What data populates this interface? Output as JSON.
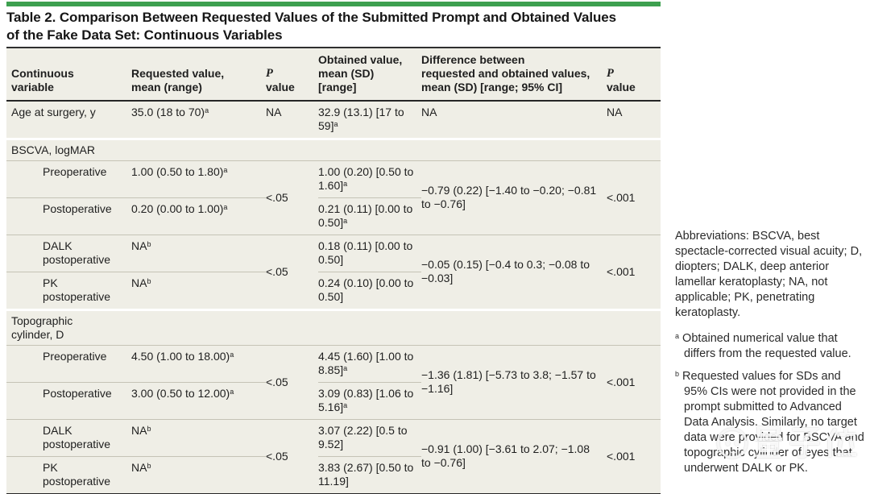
{
  "title": {
    "line1": "Table 2. Comparison Between Requested Values of the Submitted Prompt and Obtained Values",
    "line2": "of the Fake Data Set: Continuous Variables"
  },
  "table": {
    "headers": [
      {
        "text": "Continuous\nvariable"
      },
      {
        "text": "Requested value,\nmean (range)"
      },
      {
        "em": "P",
        "text": "value"
      },
      {
        "text": "Obtained value,\nmean (SD)\n[range]"
      },
      {
        "text": "Difference between\nrequested and obtained values,\nmean (SD) [range; 95% CI]"
      },
      {
        "em": "P",
        "text": "value"
      }
    ],
    "rows": [
      {
        "type": "data",
        "cells": [
          {
            "t": "Age at surgery, y"
          },
          {
            "t": "35.0 (18 to 70)^a"
          },
          {
            "t": "NA"
          },
          {
            "t": "32.9 (13.1) [17 to 59]^a"
          },
          {
            "t": "NA"
          },
          {
            "t": "NA"
          }
        ]
      },
      {
        "type": "gap"
      },
      {
        "type": "section",
        "t": "BSCVA, logMAR"
      },
      {
        "type": "data",
        "cells": [
          {
            "t": "Preoperative",
            "indent": true,
            "hline": true
          },
          {
            "t": "1.00 (0.50 to 1.80)^a",
            "hline": true
          },
          {
            "t": "<.05",
            "rowspan": 2,
            "mid": true
          },
          {
            "t": "1.00 (0.20) [0.50 to 1.60]^a",
            "hline": true
          },
          {
            "t": "−0.79 (0.22) [−1.40 to −0.20; −0.81 to −0.76]",
            "rowspan": 2,
            "mid": true
          },
          {
            "t": "<.001",
            "rowspan": 2,
            "mid": true
          }
        ]
      },
      {
        "type": "data",
        "cells": [
          {
            "t": "Postoperative",
            "indent": true
          },
          {
            "t": "0.20 (0.00 to 1.00)^a"
          },
          {
            "t": "0.21 (0.11) [0.00 to 0.50]^a"
          }
        ]
      },
      {
        "type": "data",
        "topline": true,
        "cells": [
          {
            "t": "DALK postoperative",
            "indent": true,
            "hline": true
          },
          {
            "t": "NA^b",
            "hline": true
          },
          {
            "t": "<.05",
            "rowspan": 2,
            "mid": true
          },
          {
            "t": "0.18 (0.11) [0.00 to 0.50]",
            "hline": true
          },
          {
            "t": "−0.05 (0.15) [−0.4 to 0.3; −0.08 to −0.03]",
            "rowspan": 2,
            "mid": true
          },
          {
            "t": "<.001",
            "rowspan": 2,
            "mid": true
          }
        ]
      },
      {
        "type": "data",
        "cells": [
          {
            "t": "PK postoperative",
            "indent": true
          },
          {
            "t": "NA^b"
          },
          {
            "t": "0.24 (0.10) [0.00 to 0.50]"
          }
        ]
      },
      {
        "type": "gap"
      },
      {
        "type": "section",
        "t": "Topographic cylinder, D"
      },
      {
        "type": "data",
        "cells": [
          {
            "t": "Preoperative",
            "indent": true,
            "hline": true
          },
          {
            "t": "4.50 (1.00 to 18.00)^a",
            "hline": true
          },
          {
            "t": "<.05",
            "rowspan": 2,
            "mid": true
          },
          {
            "t": "4.45 (1.60) [1.00 to 8.85]^a",
            "hline": true
          },
          {
            "t": "−1.36 (1.81) [−5.73 to 3.8; −1.57 to −1.16]",
            "rowspan": 2,
            "mid": true
          },
          {
            "t": "<.001",
            "rowspan": 2,
            "mid": true
          }
        ]
      },
      {
        "type": "data",
        "cells": [
          {
            "t": "Postoperative",
            "indent": true
          },
          {
            "t": "3.00 (0.50 to 12.00)^a"
          },
          {
            "t": "3.09 (0.83) [1.06 to 5.16]^a"
          }
        ]
      },
      {
        "type": "data",
        "topline": true,
        "cells": [
          {
            "t": "DALK postoperative",
            "indent": true,
            "hline": true
          },
          {
            "t": "NA^b",
            "hline": true
          },
          {
            "t": "<.05",
            "rowspan": 2,
            "mid": true
          },
          {
            "t": "3.07 (2.22) [0.5 to 9.52]",
            "hline": true
          },
          {
            "t": "−0.91 (1.00) [−3.61 to 2.07; −1.08 to −0.76]",
            "rowspan": 2,
            "mid": true
          },
          {
            "t": "<.001",
            "rowspan": 2,
            "mid": true
          }
        ]
      },
      {
        "type": "data",
        "cells": [
          {
            "t": "PK postoperative",
            "indent": true
          },
          {
            "t": "NA^b"
          },
          {
            "t": "3.83 (2.67) [0.50 to 11.19]"
          }
        ]
      }
    ]
  },
  "notes": {
    "abbreviations": "Abbreviations: BSCVA, best spectacle-corrected visual acuity; D, diopters; DALK, deep anterior lamellar keratoplasty; NA, not applicable; PK, penetrating keratoplasty.",
    "footnotes": [
      {
        "marker": "a",
        "text": "Obtained numerical value that differs from the requested value."
      },
      {
        "marker": "b",
        "text": "Requested values for SDs and 95% CIs were not provided in the prompt submitted to Advanced Data Analysis. Similarly, no target data were provided for BSCVA and topographic cylinder of eyes that underwent DALK or PK."
      }
    ]
  },
  "watermark": {
    "text": "量子位"
  },
  "colors": {
    "accent_green": "#3da04f",
    "table_bg": "#efeee6",
    "hairline": "#c5c3b6",
    "dark_rule": "#262626"
  }
}
